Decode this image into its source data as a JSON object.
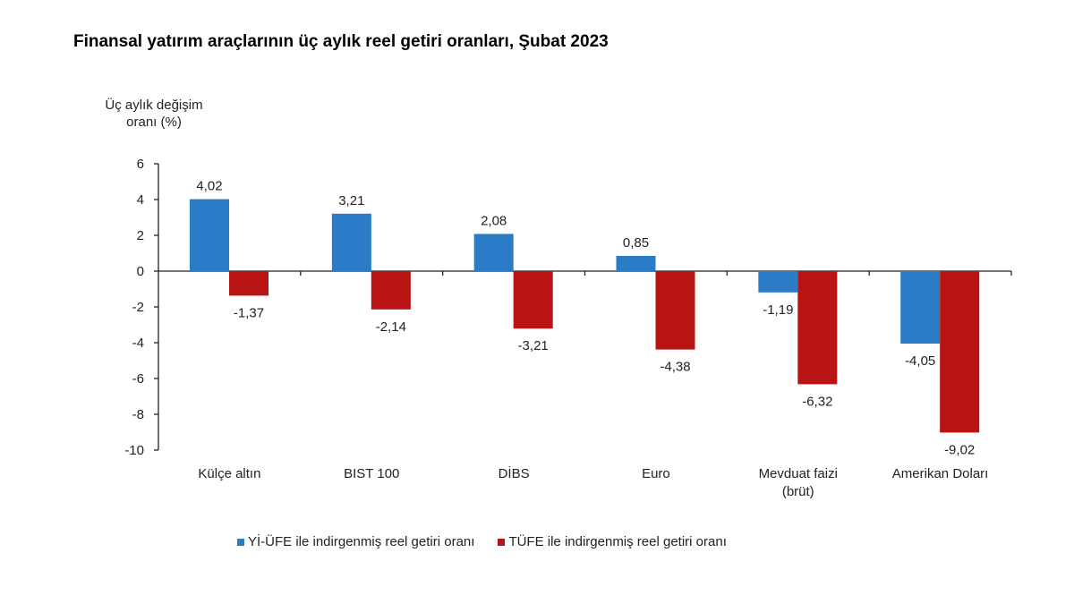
{
  "chart_data": {
    "type": "bar",
    "title": "Finansal yatırım araçlarının üç aylık reel getiri oranları, Şubat 2023",
    "ylabel_lines": [
      "Üç aylık değişim",
      "oranı (%)"
    ],
    "ylabel": "Üç aylık değişim oranı (%)",
    "xlabel": "",
    "ylim": [
      -10,
      6
    ],
    "yticks": [
      6,
      4,
      2,
      0,
      -2,
      -4,
      -6,
      -8,
      -10
    ],
    "grid": false,
    "legend_position": "bottom",
    "categories": [
      [
        "Külçe altın"
      ],
      [
        "BIST 100"
      ],
      [
        "DİBS"
      ],
      [
        "Euro"
      ],
      [
        "Mevduat faizi",
        "(brüt)"
      ],
      [
        "Amerikan Doları"
      ]
    ],
    "series": [
      {
        "name": "Yİ-ÜFE ile indirgenmiş reel getiri oranı",
        "color": "#2a7cc7",
        "values": [
          4.02,
          3.21,
          2.08,
          0.85,
          -1.19,
          -4.05
        ],
        "labels": [
          "4,02",
          "3,21",
          "2,08",
          "0,85",
          "-1,19",
          "-4,05"
        ]
      },
      {
        "name": "TÜFE ile indirgenmiş reel getiri oranı",
        "color": "#b81414",
        "values": [
          -1.37,
          -2.14,
          -3.21,
          -4.38,
          -6.32,
          -9.02
        ],
        "labels": [
          "-1,37",
          "-2,14",
          "-3,21",
          "-4,38",
          "-6,32",
          "-9,02"
        ]
      }
    ]
  }
}
